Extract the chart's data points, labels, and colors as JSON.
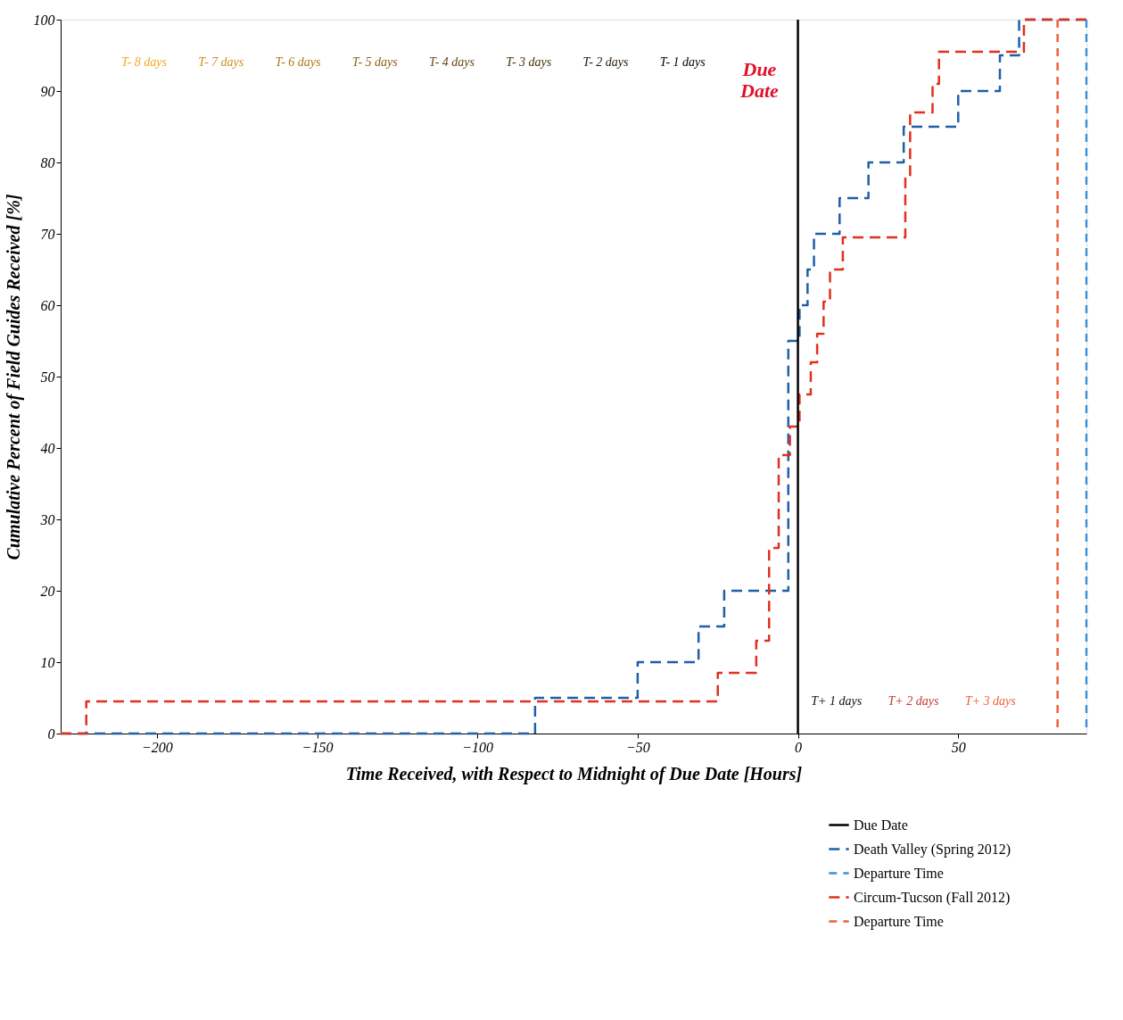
{
  "chart_data": {
    "type": "step",
    "xlabel": "Time Received, with Respect to Midnight of Due Date [Hours]",
    "ylabel": "Cumulative Percent of Field Guides Received [%]",
    "xlim": [
      -230,
      90
    ],
    "xticks": [
      -200,
      -150,
      -100,
      -50,
      0,
      50
    ],
    "ylim": [
      0,
      100
    ],
    "yticks": [
      0,
      10,
      20,
      30,
      40,
      50,
      60,
      70,
      80,
      90,
      100
    ],
    "grid": false,
    "legend": "bottom right",
    "marker": "none",
    "series": [
      {
        "name": "Death Valley (Spring 2012)",
        "color": "#1f5fa8",
        "line_style": "dashed",
        "x": [
          -230,
          -82,
          -50,
          -31,
          -23,
          -3,
          0.5,
          3,
          5,
          13,
          22,
          33,
          50,
          63,
          69,
          90
        ],
        "values": [
          0,
          5,
          10,
          15,
          20,
          55,
          60,
          65,
          70,
          75,
          80,
          85,
          90,
          95,
          100,
          100
        ]
      },
      {
        "name": "Circum-Tucson (Fall 2012)",
        "color": "#e0301e",
        "line_style": "dashed",
        "x": [
          -230,
          -222,
          -25,
          -13,
          -9,
          -6,
          -2.5,
          0.5,
          4,
          6,
          8,
          10,
          14,
          33.5,
          35,
          42,
          44,
          70.5,
          90
        ],
        "values": [
          0,
          4.5,
          8.5,
          13,
          26,
          39,
          43,
          47.5,
          52,
          56,
          60.5,
          65,
          69.5,
          78,
          87,
          91,
          95.5,
          100,
          100
        ]
      }
    ],
    "ref_lines": [
      {
        "axis": "x",
        "value": 0,
        "label": "Due Date",
        "color": "#000000",
        "line_style": "solid"
      },
      {
        "axis": "x",
        "value": 90,
        "label": "Departure Time",
        "color": "#3d8fd6",
        "line_style": "dashed"
      },
      {
        "axis": "x",
        "value": 81,
        "label": "Departure Time",
        "color": "#f0603a",
        "line_style": "dashed"
      }
    ],
    "annotations": [
      "T- 8 days",
      "T- 7 days",
      "T- 6 days",
      "T- 5 days",
      "T- 4 days",
      "T- 3 days",
      "T- 2 days",
      "T- 1 days",
      "Due Date",
      "T+ 1 days",
      "T+ 2 days",
      "T+ 3 days"
    ]
  }
}
